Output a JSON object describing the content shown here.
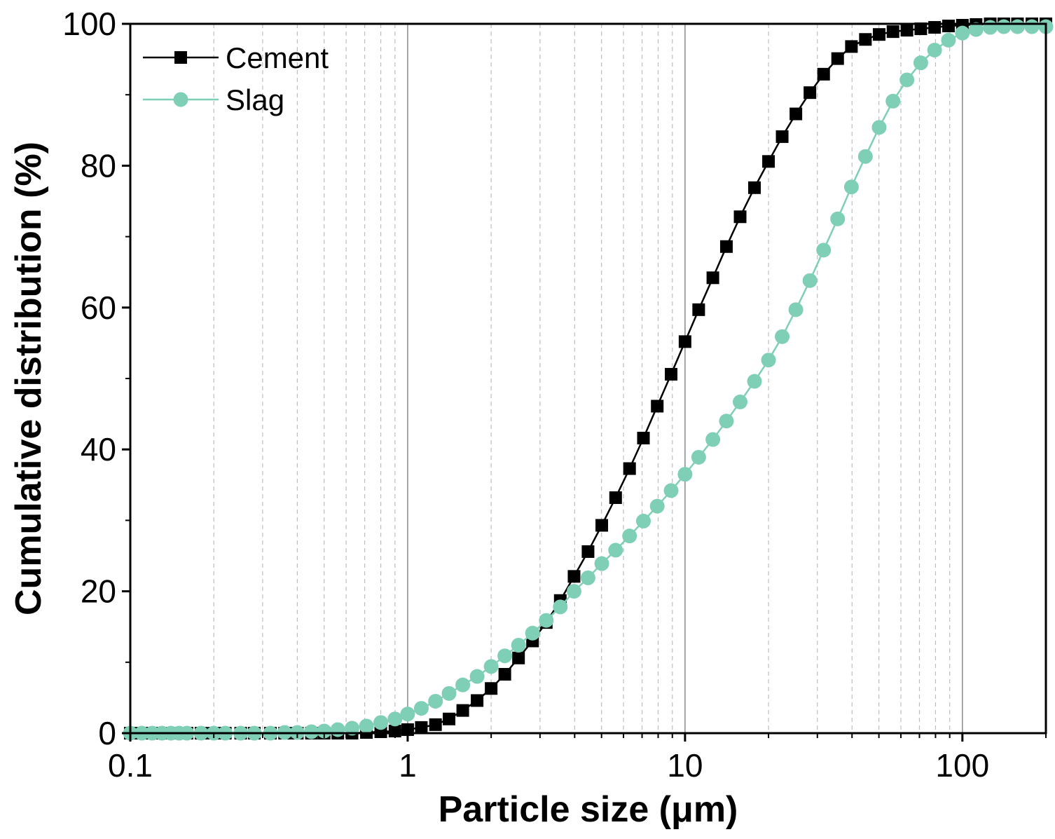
{
  "chart_data": {
    "type": "line",
    "title": "",
    "xlabel": "Particle size (μm)",
    "ylabel": "Cumulative distribution (%)",
    "xscale": "log",
    "xlim": [
      0.1,
      200
    ],
    "ylim": [
      0,
      100
    ],
    "xticks": [
      {
        "value": 0.1,
        "label": "0.1"
      },
      {
        "value": 1,
        "label": "1"
      },
      {
        "value": 10,
        "label": "10"
      },
      {
        "value": 100,
        "label": "100"
      }
    ],
    "yticks": [
      {
        "value": 0,
        "label": "0"
      },
      {
        "value": 20,
        "label": "20"
      },
      {
        "value": 40,
        "label": "40"
      },
      {
        "value": 60,
        "label": "60"
      },
      {
        "value": 80,
        "label": "80"
      },
      {
        "value": 100,
        "label": "100"
      }
    ],
    "grid": "vertical minor dashed, major solid",
    "legend_position": "top-left",
    "series": [
      {
        "name": "Cement",
        "color": "#000000",
        "marker": "square",
        "x": [
          0.1,
          0.11,
          0.12,
          0.13,
          0.14,
          0.15,
          0.16,
          0.18,
          0.2,
          0.22,
          0.25,
          0.28,
          0.32,
          0.36,
          0.4,
          0.45,
          0.5,
          0.56,
          0.63,
          0.71,
          0.8,
          0.9,
          1.0,
          1.12,
          1.26,
          1.41,
          1.58,
          1.78,
          2.0,
          2.24,
          2.51,
          2.82,
          3.16,
          3.55,
          3.98,
          4.47,
          5.01,
          5.62,
          6.31,
          7.08,
          7.94,
          8.91,
          10.0,
          11.2,
          12.6,
          14.1,
          15.8,
          17.8,
          20.0,
          22.4,
          25.1,
          28.2,
          31.6,
          35.5,
          39.8,
          44.7,
          50.1,
          56.2,
          63.1,
          70.8,
          79.4,
          89.1,
          100,
          112,
          126,
          141,
          158,
          178,
          200
        ],
        "y": [
          0,
          0,
          0,
          0,
          0,
          0,
          0,
          0,
          0,
          0,
          0,
          0,
          0,
          0,
          0,
          0,
          0,
          0,
          0,
          0.1,
          0.2,
          0.3,
          0.5,
          0.8,
          1.2,
          2.0,
          3.2,
          4.6,
          6.3,
          8.3,
          10.6,
          13.0,
          15.6,
          18.7,
          22.1,
          25.6,
          29.3,
          33.2,
          37.3,
          41.6,
          46.1,
          50.6,
          55.2,
          59.7,
          64.2,
          68.6,
          72.8,
          76.9,
          80.6,
          84.1,
          87.3,
          90.3,
          92.9,
          95.1,
          96.8,
          97.8,
          98.5,
          98.9,
          99.1,
          99.3,
          99.5,
          99.7,
          99.8,
          99.9,
          100,
          100,
          100,
          100,
          100
        ]
      },
      {
        "name": "Slag",
        "color": "#7fcfb6",
        "marker": "circle",
        "x": [
          0.1,
          0.11,
          0.12,
          0.13,
          0.14,
          0.15,
          0.16,
          0.18,
          0.2,
          0.22,
          0.25,
          0.28,
          0.32,
          0.36,
          0.4,
          0.45,
          0.5,
          0.56,
          0.63,
          0.71,
          0.8,
          0.9,
          1.0,
          1.12,
          1.26,
          1.41,
          1.58,
          1.78,
          2.0,
          2.24,
          2.51,
          2.82,
          3.16,
          3.55,
          3.98,
          4.47,
          5.01,
          5.62,
          6.31,
          7.08,
          7.94,
          8.91,
          10.0,
          11.2,
          12.6,
          14.1,
          15.8,
          17.8,
          20.0,
          22.4,
          25.1,
          28.2,
          31.6,
          35.5,
          39.8,
          44.7,
          50.1,
          56.2,
          63.1,
          70.8,
          79.4,
          89.1,
          100,
          112,
          126,
          141,
          158,
          178,
          200
        ],
        "y": [
          0,
          0,
          0,
          0,
          0,
          0,
          0,
          0,
          0,
          0,
          0,
          0,
          0,
          0.1,
          0.1,
          0.2,
          0.3,
          0.5,
          0.7,
          1.0,
          1.5,
          2.0,
          2.7,
          3.5,
          4.5,
          5.6,
          6.8,
          8.0,
          9.4,
          10.9,
          12.4,
          14.1,
          15.9,
          17.8,
          20.0,
          21.9,
          23.9,
          25.8,
          27.8,
          29.9,
          32.0,
          34.2,
          36.5,
          38.9,
          41.4,
          44.0,
          46.7,
          49.6,
          52.6,
          55.9,
          59.7,
          63.8,
          68.1,
          72.5,
          77.0,
          81.3,
          85.4,
          89.1,
          92.1,
          94.5,
          96.3,
          97.7,
          98.7,
          99.2,
          99.5,
          99.6,
          99.6,
          99.6,
          99.6
        ]
      }
    ]
  }
}
